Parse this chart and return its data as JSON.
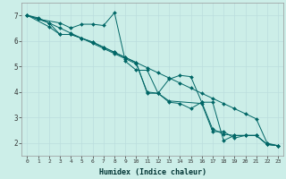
{
  "xlabel": "Humidex (Indice chaleur)",
  "ylabel": "",
  "bg_color": "#cceee8",
  "line_color": "#006666",
  "marker_color": "#006666",
  "xlim": [
    -0.5,
    23.5
  ],
  "ylim": [
    1.5,
    7.5
  ],
  "yticks": [
    2,
    3,
    4,
    5,
    6,
    7
  ],
  "xticks": [
    0,
    1,
    2,
    3,
    4,
    5,
    6,
    7,
    8,
    9,
    10,
    11,
    12,
    13,
    14,
    15,
    16,
    17,
    18,
    19,
    20,
    21,
    22,
    23
  ],
  "series": [
    {
      "x": [
        0,
        1,
        3,
        4,
        5,
        6,
        7,
        8,
        9,
        10,
        11,
        12,
        13,
        14,
        15,
        16,
        17,
        18,
        19,
        20,
        21,
        22,
        23
      ],
      "y": [
        7.0,
        6.85,
        6.7,
        6.5,
        6.65,
        6.65,
        6.6,
        7.1,
        5.2,
        4.85,
        4.85,
        3.95,
        4.5,
        4.65,
        4.6,
        3.6,
        3.6,
        2.1,
        2.3,
        2.3,
        2.3,
        1.95,
        1.9
      ]
    },
    {
      "x": [
        0,
        1,
        2,
        3,
        4,
        5,
        6,
        7,
        8,
        9,
        10,
        11,
        12,
        13,
        14,
        15,
        16,
        17,
        18,
        19,
        20,
        21,
        22,
        23
      ],
      "y": [
        7.0,
        6.9,
        6.7,
        6.25,
        6.25,
        6.1,
        5.9,
        5.7,
        5.5,
        5.3,
        5.1,
        4.0,
        3.95,
        3.6,
        3.55,
        3.35,
        3.6,
        2.55,
        2.35,
        2.3,
        2.3,
        2.3,
        1.95,
        1.9
      ]
    },
    {
      "x": [
        0,
        2,
        3,
        4,
        5,
        6,
        7,
        8,
        9,
        10,
        11,
        12,
        13,
        16,
        17,
        18,
        19,
        20,
        21,
        22,
        23
      ],
      "y": [
        7.0,
        6.55,
        6.25,
        6.25,
        6.1,
        5.95,
        5.75,
        5.55,
        5.35,
        5.15,
        3.95,
        3.95,
        3.65,
        3.55,
        2.45,
        2.45,
        2.2,
        2.3,
        2.3,
        1.95,
        1.9
      ]
    },
    {
      "x": [
        0,
        1,
        2,
        3,
        4,
        5,
        6,
        7,
        8,
        9,
        10,
        11,
        12,
        13,
        14,
        15,
        16,
        17,
        18,
        19,
        20,
        21,
        22,
        23
      ],
      "y": [
        7.0,
        6.85,
        6.7,
        6.5,
        6.3,
        6.1,
        5.95,
        5.75,
        5.55,
        5.35,
        5.15,
        4.95,
        4.75,
        4.55,
        4.35,
        4.15,
        3.95,
        3.75,
        3.55,
        3.35,
        3.15,
        2.95,
        2.0,
        1.9
      ]
    }
  ]
}
